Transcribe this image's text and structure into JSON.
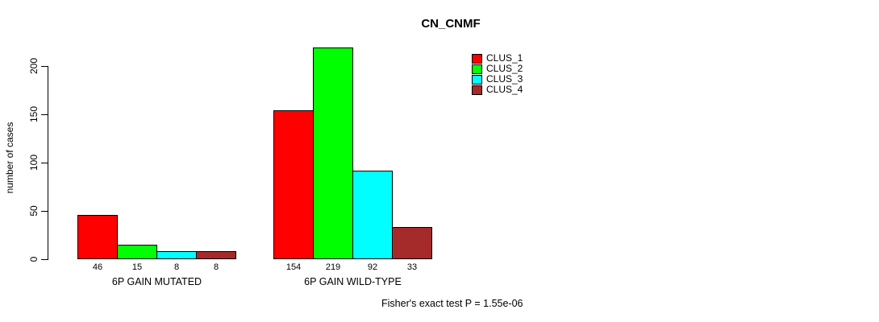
{
  "chart_data": {
    "type": "bar",
    "title": "CN_CNMF",
    "ylabel": "number of cases",
    "xlabel": "",
    "categories": [
      "6P GAIN MUTATED",
      "6P GAIN WILD-TYPE"
    ],
    "series": [
      {
        "name": "CLUS_1",
        "color": "#FF0000",
        "values": [
          46,
          154
        ]
      },
      {
        "name": "CLUS_2",
        "color": "#00FF00",
        "values": [
          15,
          219
        ]
      },
      {
        "name": "CLUS_3",
        "color": "#00FFFF",
        "values": [
          8,
          92
        ]
      },
      {
        "name": "CLUS_4",
        "color": "#A52A2A",
        "values": [
          8,
          33
        ]
      }
    ],
    "yticks": [
      0,
      50,
      100,
      150,
      200
    ],
    "ylim": [
      0,
      220
    ],
    "grid": false,
    "legend_position": "top-right",
    "annotation": "Fisher's exact test P = 1.55e-06",
    "value_labels_shown": true
  }
}
